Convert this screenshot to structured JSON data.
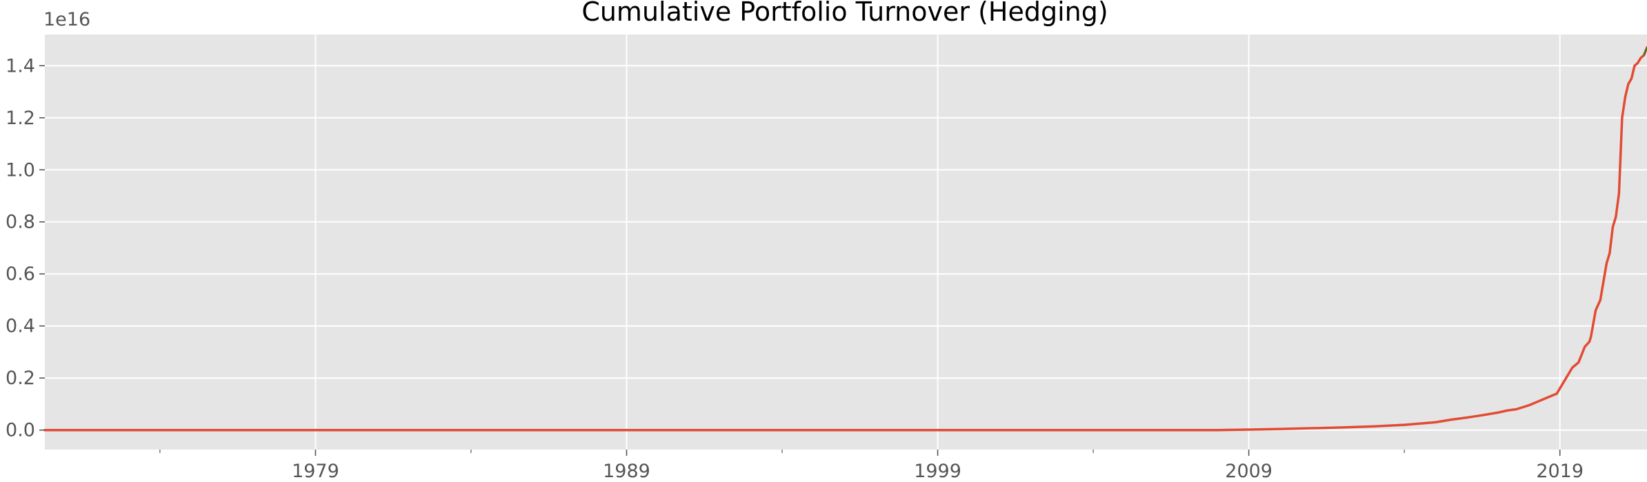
{
  "chart_data": {
    "type": "line",
    "title": "Cumulative Portfolio Turnover (Hedging)",
    "xlabel": "",
    "ylabel": "",
    "y_offset_label": "1e16",
    "xlim": [
      1970.3,
      2021.8
    ],
    "ylim": [
      -0.075,
      1.52
    ],
    "x_ticks": [
      {
        "value": 1979,
        "label": "1979"
      },
      {
        "value": 1989,
        "label": "1989"
      },
      {
        "value": 1999,
        "label": "1999"
      },
      {
        "value": 2009,
        "label": "2009"
      },
      {
        "value": 2019,
        "label": "2019"
      }
    ],
    "x_minor_ticks": [
      1974,
      1984,
      1994,
      2004,
      2014
    ],
    "y_ticks": [
      {
        "value": 0.0,
        "label": "0.0"
      },
      {
        "value": 0.2,
        "label": "0.2"
      },
      {
        "value": 0.4,
        "label": "0.4"
      },
      {
        "value": 0.6,
        "label": "0.6"
      },
      {
        "value": 0.8,
        "label": "0.8"
      },
      {
        "value": 1.0,
        "label": "1.0"
      },
      {
        "value": 1.2,
        "label": "1.2"
      },
      {
        "value": 1.4,
        "label": "1.4"
      }
    ],
    "grid": true,
    "colors": {
      "background": "#e5e5e5",
      "grid": "#ffffff",
      "line": "#e24a33",
      "line_end": "#467821"
    },
    "series": [
      {
        "x": [
          1970.3,
          1980,
          1990,
          2000,
          2005,
          2008,
          2009,
          2010,
          2011,
          2012,
          2013,
          2014,
          2014.5,
          2015,
          2015.5,
          2016,
          2016.5,
          2017,
          2017.3,
          2017.6,
          2018,
          2018.3,
          2018.6,
          2018.9,
          2019.0,
          2019.2,
          2019.4,
          2019.6,
          2019.8,
          2019.95,
          2020.0,
          2020.15,
          2020.3,
          2020.5,
          2020.6,
          2020.7,
          2020.8,
          2020.9,
          2021.0,
          2021.1,
          2021.2,
          2021.3,
          2021.4,
          2021.5,
          2021.6,
          2021.7,
          2021.8
        ],
        "values": [
          0.0,
          0.0,
          0.0,
          0.0,
          0.0,
          0.0,
          0.002,
          0.004,
          0.007,
          0.01,
          0.014,
          0.02,
          0.025,
          0.03,
          0.04,
          0.048,
          0.057,
          0.067,
          0.075,
          0.08,
          0.095,
          0.11,
          0.125,
          0.14,
          0.16,
          0.2,
          0.24,
          0.26,
          0.32,
          0.34,
          0.36,
          0.46,
          0.5,
          0.64,
          0.68,
          0.78,
          0.82,
          0.91,
          1.2,
          1.28,
          1.33,
          1.35,
          1.4,
          1.41,
          1.43,
          1.44,
          1.47
        ]
      }
    ]
  }
}
